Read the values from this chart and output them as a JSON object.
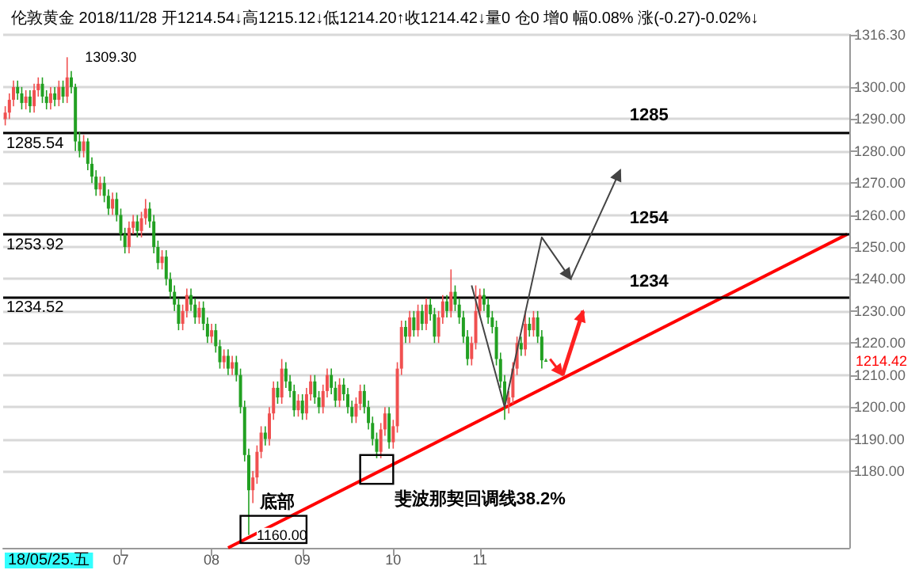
{
  "chart_data": {
    "type": "candlestick",
    "title": "伦敦黄金 2018/11/28 开1214.54↓高1215.12↓低1214.20↑收1214.42↓量0 仓0 增0 幅0.08% 涨(-0.27)-0.02%↓",
    "categories": [
      null,
      null,
      null,
      null,
      null,
      null,
      null,
      null,
      null,
      null,
      null,
      null,
      null,
      null,
      null,
      null,
      null,
      null,
      null,
      null,
      null,
      null,
      null,
      null,
      null,
      null,
      null,
      null,
      "07",
      null,
      null,
      null,
      null,
      null,
      null,
      null,
      null,
      null,
      null,
      null,
      null,
      null,
      null,
      null,
      null,
      null,
      null,
      null,
      null,
      null,
      "08",
      null,
      null,
      null,
      null,
      null,
      null,
      null,
      null,
      null,
      null,
      null,
      null,
      null,
      null,
      null,
      null,
      null,
      null,
      null,
      null,
      null,
      "09",
      null,
      null,
      null,
      null,
      null,
      null,
      null,
      null,
      null,
      null,
      null,
      null,
      null,
      null,
      null,
      null,
      null,
      null,
      null,
      null,
      null,
      "10",
      null,
      null,
      null,
      null,
      null,
      null,
      null,
      null,
      null,
      null,
      null,
      null,
      null,
      null,
      null,
      null,
      null,
      null,
      null,
      null,
      "11",
      null,
      null,
      null,
      null,
      null,
      null,
      null,
      null,
      null,
      null,
      null,
      null,
      null,
      null,
      null,
      null,
      null,
      null,
      null,
      null,
      null,
      null,
      null,
      null,
      null,
      null,
      null,
      null,
      null,
      null,
      null,
      null,
      null,
      null,
      null,
      null,
      null,
      null,
      null,
      null,
      null,
      null,
      null,
      null,
      null,
      null,
      null,
      null,
      null,
      null,
      null,
      null,
      null,
      null,
      null,
      null,
      null,
      null,
      null,
      null,
      null,
      null,
      null,
      null,
      null,
      null,
      null,
      null,
      null,
      null,
      null,
      null,
      null,
      null,
      null,
      null,
      null,
      null,
      null,
      null,
      null,
      null,
      null,
      null,
      null,
      null,
      null,
      null,
      null
    ],
    "ohlc": [
      [
        1290,
        1294,
        1288,
        1292
      ],
      [
        1292,
        1298,
        1290,
        1296
      ],
      [
        1296,
        1302,
        1294,
        1300
      ],
      [
        1300,
        1302,
        1296,
        1298
      ],
      [
        1298,
        1300,
        1293,
        1295
      ],
      [
        1295,
        1299,
        1293,
        1297
      ],
      [
        1297,
        1299,
        1292,
        1294
      ],
      [
        1294,
        1301,
        1292,
        1299
      ],
      [
        1299,
        1303,
        1297,
        1301
      ],
      [
        1301,
        1303,
        1295,
        1297
      ],
      [
        1297,
        1299,
        1293,
        1295
      ],
      [
        1295,
        1300,
        1293,
        1298
      ],
      [
        1298,
        1300,
        1294,
        1296
      ],
      [
        1296,
        1302,
        1294,
        1300
      ],
      [
        1300,
        1302,
        1295,
        1297
      ],
      [
        1297,
        1309.3,
        1295,
        1303
      ],
      [
        1303,
        1305,
        1298,
        1300
      ],
      [
        1300,
        1301,
        1280,
        1283
      ],
      [
        1283,
        1286,
        1278,
        1280
      ],
      [
        1280,
        1285,
        1278,
        1283
      ],
      [
        1283,
        1284,
        1274,
        1276
      ],
      [
        1276,
        1278,
        1270,
        1272
      ],
      [
        1272,
        1274,
        1266,
        1268
      ],
      [
        1268,
        1272,
        1266,
        1270
      ],
      [
        1270,
        1272,
        1264,
        1266
      ],
      [
        1266,
        1268,
        1260,
        1262
      ],
      [
        1262,
        1267,
        1260,
        1265
      ],
      [
        1265,
        1267,
        1258,
        1260
      ],
      [
        1260,
        1262,
        1252,
        1254
      ],
      [
        1254,
        1256,
        1248,
        1250
      ],
      [
        1250,
        1258,
        1248,
        1256
      ],
      [
        1256,
        1260,
        1254,
        1258
      ],
      [
        1258,
        1260,
        1253,
        1255
      ],
      [
        1255,
        1261,
        1253,
        1259
      ],
      [
        1259,
        1265,
        1257,
        1262
      ],
      [
        1262,
        1264,
        1256,
        1258
      ],
      [
        1258,
        1260,
        1248,
        1250
      ],
      [
        1250,
        1252,
        1243,
        1245
      ],
      [
        1245,
        1249,
        1243,
        1247
      ],
      [
        1247,
        1249,
        1238,
        1240
      ],
      [
        1240,
        1242,
        1234,
        1236
      ],
      [
        1236,
        1238,
        1230,
        1232
      ],
      [
        1232,
        1234,
        1224,
        1226
      ],
      [
        1226,
        1232,
        1224,
        1230
      ],
      [
        1230,
        1237,
        1228,
        1235
      ],
      [
        1235,
        1237,
        1230,
        1232
      ],
      [
        1232,
        1234,
        1226,
        1228
      ],
      [
        1228,
        1233,
        1226,
        1231
      ],
      [
        1231,
        1233,
        1224,
        1226
      ],
      [
        1226,
        1228,
        1220,
        1222
      ],
      [
        1222,
        1226,
        1220,
        1224
      ],
      [
        1224,
        1226,
        1217,
        1219
      ],
      [
        1219,
        1221,
        1212,
        1214
      ],
      [
        1214,
        1218,
        1212,
        1216
      ],
      [
        1216,
        1218,
        1210,
        1212
      ],
      [
        1212,
        1216,
        1210,
        1214
      ],
      [
        1214,
        1216,
        1208,
        1210
      ],
      [
        1210,
        1212,
        1198,
        1200
      ],
      [
        1200,
        1202,
        1183,
        1185
      ],
      [
        1185,
        1187,
        1160,
        1174
      ],
      [
        1174,
        1180,
        1170,
        1178
      ],
      [
        1178,
        1188,
        1176,
        1186
      ],
      [
        1186,
        1194,
        1184,
        1192
      ],
      [
        1192,
        1194,
        1188,
        1190
      ],
      [
        1190,
        1200,
        1188,
        1198
      ],
      [
        1198,
        1208,
        1196,
        1206
      ],
      [
        1206,
        1208,
        1201,
        1203
      ],
      [
        1203,
        1215,
        1201,
        1212
      ],
      [
        1212,
        1214,
        1206,
        1208
      ],
      [
        1208,
        1210,
        1203,
        1205
      ],
      [
        1205,
        1207,
        1197,
        1199
      ],
      [
        1199,
        1204,
        1197,
        1202
      ],
      [
        1202,
        1204,
        1196,
        1198
      ],
      [
        1198,
        1206,
        1196,
        1204
      ],
      [
        1204,
        1210,
        1202,
        1208
      ],
      [
        1208,
        1210,
        1201,
        1203
      ],
      [
        1203,
        1205,
        1198,
        1200
      ],
      [
        1200,
        1207,
        1198,
        1205
      ],
      [
        1205,
        1212,
        1203,
        1210
      ],
      [
        1210,
        1212,
        1204,
        1206
      ],
      [
        1206,
        1208,
        1200,
        1202
      ],
      [
        1202,
        1209,
        1200,
        1207
      ],
      [
        1207,
        1209,
        1202,
        1204
      ],
      [
        1204,
        1206,
        1198,
        1200
      ],
      [
        1200,
        1202,
        1195,
        1197
      ],
      [
        1197,
        1203,
        1195,
        1201
      ],
      [
        1201,
        1207,
        1199,
        1205
      ],
      [
        1205,
        1207,
        1198,
        1200
      ],
      [
        1200,
        1202,
        1193,
        1195
      ],
      [
        1195,
        1197,
        1188,
        1190
      ],
      [
        1190,
        1192,
        1184,
        1186
      ],
      [
        1186,
        1195,
        1184,
        1193
      ],
      [
        1193,
        1200,
        1191,
        1198
      ],
      [
        1198,
        1200,
        1187,
        1189
      ],
      [
        1189,
        1196,
        1187,
        1194
      ],
      [
        1194,
        1214,
        1192,
        1212
      ],
      [
        1212,
        1227,
        1210,
        1225
      ],
      [
        1225,
        1227,
        1220,
        1222
      ],
      [
        1222,
        1230,
        1220,
        1228
      ],
      [
        1228,
        1230,
        1222,
        1224
      ],
      [
        1224,
        1232,
        1222,
        1230
      ],
      [
        1230,
        1232,
        1224,
        1226
      ],
      [
        1226,
        1234,
        1224,
        1232
      ],
      [
        1232,
        1234,
        1227,
        1229
      ],
      [
        1229,
        1231,
        1220,
        1222
      ],
      [
        1222,
        1230,
        1220,
        1228
      ],
      [
        1228,
        1235,
        1226,
        1233
      ],
      [
        1233,
        1235,
        1228,
        1230
      ],
      [
        1230,
        1243,
        1228,
        1236
      ],
      [
        1236,
        1238,
        1230,
        1232
      ],
      [
        1232,
        1234,
        1226,
        1228
      ],
      [
        1228,
        1230,
        1220,
        1222
      ],
      [
        1222,
        1224,
        1213,
        1215
      ],
      [
        1215,
        1222,
        1213,
        1220
      ],
      [
        1220,
        1238,
        1218,
        1230
      ],
      [
        1230,
        1237,
        1228,
        1235
      ],
      [
        1235,
        1237,
        1230,
        1232
      ],
      [
        1232,
        1234,
        1226,
        1228
      ],
      [
        1228,
        1230,
        1223,
        1225
      ],
      [
        1225,
        1227,
        1213,
        1215
      ],
      [
        1215,
        1217,
        1206,
        1208
      ],
      [
        1208,
        1210,
        1196,
        1201
      ],
      [
        1201,
        1205,
        1198,
        1203
      ],
      [
        1203,
        1214,
        1201,
        1212
      ],
      [
        1212,
        1222,
        1210,
        1220
      ],
      [
        1220,
        1222,
        1216,
        1218
      ],
      [
        1218,
        1230,
        1216,
        1226
      ],
      [
        1226,
        1228,
        1222,
        1224
      ],
      [
        1224,
        1230,
        1222,
        1228
      ],
      [
        1228,
        1230,
        1220,
        1222
      ],
      [
        1222,
        1224,
        1212,
        1214.6
      ],
      [
        1214.54,
        1215.12,
        1214.2,
        1214.42
      ],
      null,
      null,
      null,
      null,
      null,
      null,
      null,
      null,
      null,
      null,
      null,
      null,
      null,
      null,
      null,
      null,
      null,
      null,
      null,
      null,
      null,
      null,
      null,
      null,
      null,
      null,
      null,
      null,
      null,
      null,
      null,
      null,
      null,
      null,
      null,
      null,
      null,
      null,
      null,
      null,
      null,
      null,
      null,
      null,
      null,
      null,
      null,
      null,
      null,
      null,
      null,
      null,
      null,
      null,
      null,
      null,
      null,
      null,
      null,
      null,
      null,
      null,
      null,
      null,
      null,
      null,
      null,
      null,
      null,
      null,
      null,
      null,
      null
    ],
    "colors": [
      "#f05050",
      "#f05050",
      "#f05050",
      "#22a022",
      "#22a022",
      "#f05050",
      "#22a022",
      "#f05050",
      "#f05050",
      "#22a022",
      "#22a022",
      "#f05050",
      "#22a022",
      "#f05050",
      "#22a022",
      "#f05050",
      "#22a022",
      "#22a022",
      "#22a022",
      "#f05050",
      "#22a022",
      "#22a022",
      "#22a022",
      "#f05050",
      "#22a022",
      "#22a022",
      "#f05050",
      "#22a022",
      "#22a022",
      "#22a022",
      "#f05050",
      "#f05050",
      "#22a022",
      "#f05050",
      "#f05050",
      "#22a022",
      "#22a022",
      "#22a022",
      "#f05050",
      "#22a022",
      "#22a022",
      "#22a022",
      "#22a022",
      "#f05050",
      "#f05050",
      "#22a022",
      "#22a022",
      "#f05050",
      "#22a022",
      "#22a022",
      "#f05050",
      "#22a022",
      "#22a022",
      "#f05050",
      "#22a022",
      "#f05050",
      "#22a022",
      "#22a022",
      "#22a022",
      "#22a022",
      "#f05050",
      "#f05050",
      "#f05050",
      "#22a022",
      "#f05050",
      "#f05050",
      "#22a022",
      "#f05050",
      "#22a022",
      "#22a022",
      "#22a022",
      "#f05050",
      "#22a022",
      "#f05050",
      "#f05050",
      "#22a022",
      "#22a022",
      "#f05050",
      "#f05050",
      "#22a022",
      "#22a022",
      "#f05050",
      "#22a022",
      "#22a022",
      "#22a022",
      "#f05050",
      "#f05050",
      "#22a022",
      "#22a022",
      "#22a022",
      "#22a022",
      "#f05050",
      "#f05050",
      "#22a022",
      "#f05050",
      "#f05050",
      "#f05050",
      "#22a022",
      "#f05050",
      "#22a022",
      "#f05050",
      "#22a022",
      "#f05050",
      "#22a022",
      "#22a022",
      "#f05050",
      "#f05050",
      "#22a022",
      "#f05050",
      "#22a022",
      "#22a022",
      "#22a022",
      "#22a022",
      "#f05050",
      "#f05050",
      "#f05050",
      "#22a022",
      "#22a022",
      "#22a022",
      "#22a022",
      "#22a022",
      "#22a022",
      "#f05050",
      "#f05050",
      "#f05050",
      "#22a022",
      "#f05050",
      "#22a022",
      "#f05050",
      "#22a022",
      "#22a022",
      "#22a022",
      null,
      null,
      null,
      null,
      null,
      null,
      null,
      null,
      null,
      null,
      null,
      null,
      null,
      null,
      null,
      null,
      null,
      null,
      null,
      null,
      null,
      null,
      null,
      null,
      null,
      null,
      null,
      null,
      null,
      null,
      null,
      null,
      null,
      null,
      null,
      null,
      null,
      null,
      null,
      null,
      null,
      null,
      null,
      null,
      null,
      null,
      null,
      null,
      null,
      null,
      null,
      null,
      null,
      null,
      null,
      null,
      null,
      null,
      null,
      null,
      null,
      null,
      null,
      null,
      null,
      null,
      null,
      null,
      null,
      null,
      null,
      null,
      null
    ],
    "series": [
      {
        "type": "line",
        "color": "#ff0000",
        "values": [
          null,
          null,
          null,
          null,
          null,
          null,
          null,
          null,
          null,
          null,
          null,
          null,
          null,
          null,
          null,
          null,
          null,
          null,
          null,
          null,
          null,
          null,
          null,
          null,
          null,
          null,
          null,
          null,
          null,
          null,
          null,
          null,
          null,
          null,
          null,
          null,
          null,
          null,
          null,
          null,
          null,
          null,
          null,
          null,
          null,
          null,
          null,
          null,
          null,
          null,
          null,
          null,
          null,
          null,
          1156,
          null,
          null,
          null,
          null,
          null,
          null,
          null,
          null,
          null,
          null,
          null,
          null,
          null,
          null,
          null,
          null,
          null,
          null,
          null,
          null,
          null,
          null,
          null,
          null,
          null,
          null,
          null,
          null,
          null,
          null,
          null,
          null,
          null,
          null,
          null,
          null,
          null,
          null,
          null,
          null,
          null,
          null,
          null,
          null,
          null,
          null,
          null,
          null,
          null,
          null,
          null,
          null,
          null,
          null,
          null,
          null,
          null,
          null,
          null,
          null,
          null,
          null,
          null,
          null,
          null,
          null,
          null,
          null,
          null,
          null,
          null,
          null,
          null,
          null,
          null,
          null,
          null,
          null,
          null,
          null,
          null,
          null,
          null,
          null,
          null,
          null,
          null,
          null,
          null,
          null,
          null,
          null,
          null,
          null,
          null,
          null,
          null,
          null,
          null,
          null,
          null,
          null,
          null,
          null,
          null,
          null,
          null,
          null,
          null,
          null,
          null,
          null,
          null,
          null,
          null,
          null,
          null,
          null,
          null,
          null,
          null,
          null,
          null,
          null,
          null,
          null,
          null,
          null,
          null,
          null,
          null,
          null,
          null,
          null,
          null,
          null,
          null,
          null,
          null,
          null,
          null,
          null,
          null,
          null,
          null,
          null,
          null,
          null,
          null,
          1254
        ]
      }
    ],
    "ylim": [
      1156,
      1316.3
    ],
    "yticks": [
      {
        "value": 1180,
        "label": "1180.00"
      },
      {
        "value": 1190,
        "label": "1190.00"
      },
      {
        "value": 1200,
        "label": "1200.00"
      },
      {
        "value": 1210,
        "label": "1210.00"
      },
      {
        "value": 1220,
        "label": "1220.00"
      },
      {
        "value": 1230,
        "label": "1230.00"
      },
      {
        "value": 1240,
        "label": "1240.00"
      },
      {
        "value": 1250,
        "label": "1250.00"
      },
      {
        "value": 1260,
        "label": "1260.00"
      },
      {
        "value": 1270,
        "label": "1270.00"
      },
      {
        "value": 1280,
        "label": "1280.00"
      },
      {
        "value": 1290,
        "label": "1290.00"
      },
      {
        "value": 1300,
        "label": "1300.00"
      },
      {
        "value": 1316.3,
        "label": "1316.30"
      }
    ],
    "grid": "y",
    "ref_lines": [
      {
        "axis": "y",
        "value": 1285.54,
        "label": "1285.54",
        "color": "#000000"
      },
      {
        "axis": "y",
        "value": 1253.92,
        "label": "1253.92",
        "color": "#000000"
      },
      {
        "axis": "y",
        "value": 1234.52,
        "label": "1234.52",
        "color": "#000000"
      }
    ],
    "annotations": [
      "1285",
      "1254",
      "1234",
      "1309.30",
      "1160.00",
      "底部",
      "斐波那契回调线38.2%",
      "1214.42",
      "18/05/25.五"
    ]
  }
}
